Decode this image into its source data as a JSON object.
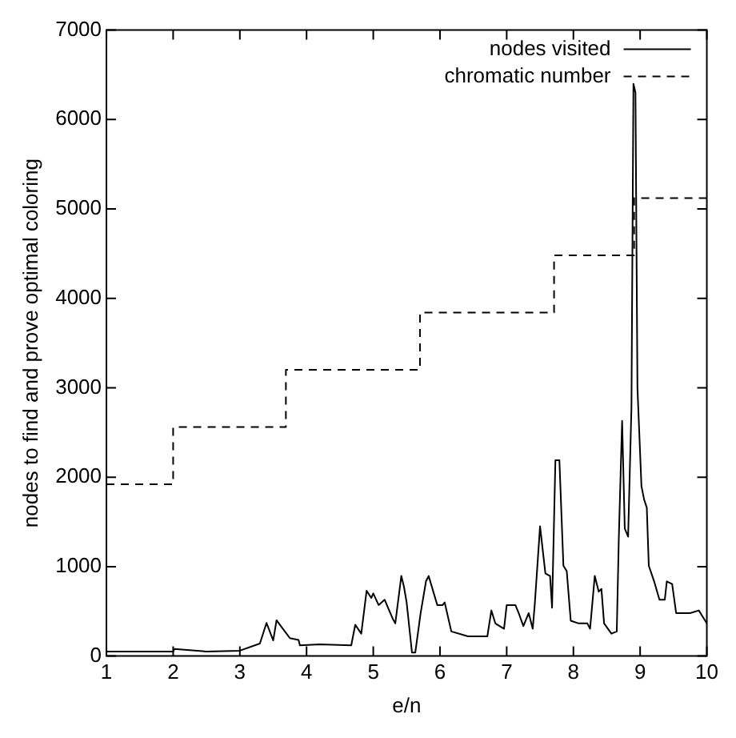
{
  "chart_data": {
    "type": "line",
    "xlabel": "e/n",
    "ylabel": "nodes to find and prove optimal coloring",
    "xlim": [
      1,
      10
    ],
    "xticks": [
      1,
      2,
      3,
      4,
      5,
      6,
      7,
      8,
      9,
      10
    ],
    "ylim": [
      0,
      7000
    ],
    "yticks": [
      0,
      1000,
      2000,
      3000,
      4000,
      5000,
      6000,
      7000
    ],
    "grid": false,
    "legend": "top right",
    "marker": "none",
    "series": [
      {
        "name": "nodes visited",
        "color": "#000000",
        "line_style": "solid",
        "x": [
          1,
          2.0,
          2.02,
          2.5,
          3.0,
          3.3,
          3.4,
          3.5,
          3.55,
          3.65,
          3.75,
          3.88,
          3.9,
          4.2,
          4.67,
          4.73,
          4.82,
          4.9,
          4.97,
          5.0,
          5.08,
          5.17,
          5.29,
          5.33,
          5.42,
          5.46,
          5.5,
          5.58,
          5.63,
          5.71,
          5.79,
          5.83,
          5.96,
          6.04,
          6.07,
          6.17,
          6.42,
          6.71,
          6.77,
          6.83,
          6.96,
          7.0,
          7.13,
          7.18,
          7.25,
          7.33,
          7.39,
          7.42,
          7.5,
          7.58,
          7.65,
          7.68,
          7.73,
          7.79,
          7.85,
          7.9,
          7.96,
          8.08,
          8.21,
          8.25,
          8.32,
          8.38,
          8.42,
          8.46,
          8.57,
          8.65,
          8.68,
          8.73,
          8.77,
          8.82,
          8.87,
          8.9,
          8.93,
          8.96,
          9.02,
          9.06,
          9.1,
          9.13,
          9.21,
          9.29,
          9.37,
          9.4,
          9.48,
          9.54,
          9.75,
          9.88,
          10
        ],
        "values": [
          50,
          50,
          80,
          50,
          60,
          140,
          370,
          175,
          400,
          300,
          200,
          180,
          120,
          130,
          120,
          350,
          250,
          730,
          650,
          700,
          570,
          630,
          420,
          365,
          895,
          775,
          600,
          40,
          40,
          480,
          835,
          895,
          570,
          570,
          600,
          275,
          220,
          220,
          510,
          365,
          305,
          570,
          570,
          480,
          335,
          480,
          305,
          570,
          1450,
          925,
          895,
          540,
          2190,
          2190,
          1010,
          950,
          395,
          365,
          365,
          305,
          895,
          720,
          750,
          365,
          250,
          275,
          1300,
          2630,
          1425,
          1335,
          2780,
          6400,
          6300,
          3000,
          1900,
          1750,
          1660,
          1010,
          835,
          630,
          630,
          835,
          805,
          480,
          480,
          510,
          365
        ]
      },
      {
        "name": "chromatic number",
        "color": "#000000",
        "type": "step",
        "line_style": "dashed",
        "x": [
          1,
          2,
          3.69,
          5.7,
          7.71,
          8.91,
          10
        ],
        "values": [
          1920,
          2560,
          3200,
          3840,
          4480,
          5120,
          5120
        ]
      }
    ]
  }
}
